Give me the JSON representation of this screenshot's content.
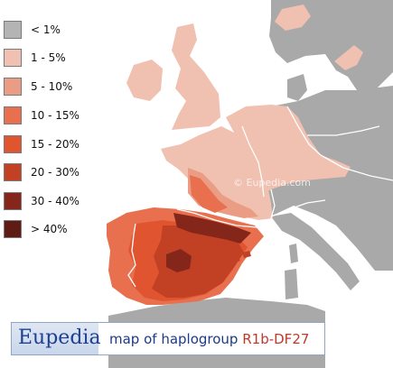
{
  "map": {
    "colors": {
      "sea": "#ffffff",
      "land_nodata": "#a9a9a9",
      "border": "#ffffff"
    }
  },
  "legend": {
    "items": [
      {
        "label": "< 1%",
        "color": "#b4b4b4"
      },
      {
        "label": "1 - 5%",
        "color": "#f0c0b0"
      },
      {
        "label": "5 - 10%",
        "color": "#ea9c84"
      },
      {
        "label": "10 - 15%",
        "color": "#e8704f"
      },
      {
        "label": "15 - 20%",
        "color": "#e05530"
      },
      {
        "label": "20 - 30%",
        "color": "#c24125"
      },
      {
        "label": "30 - 40%",
        "color": "#85261a"
      },
      {
        "label": "> 40%",
        "color": "#5e1c14"
      }
    ]
  },
  "banner": {
    "logo_text": "Eupedia",
    "text_prefix": "map of haplogroup",
    "haplogroup": "R1b-DF27"
  },
  "watermark": "© Eupedia.com"
}
